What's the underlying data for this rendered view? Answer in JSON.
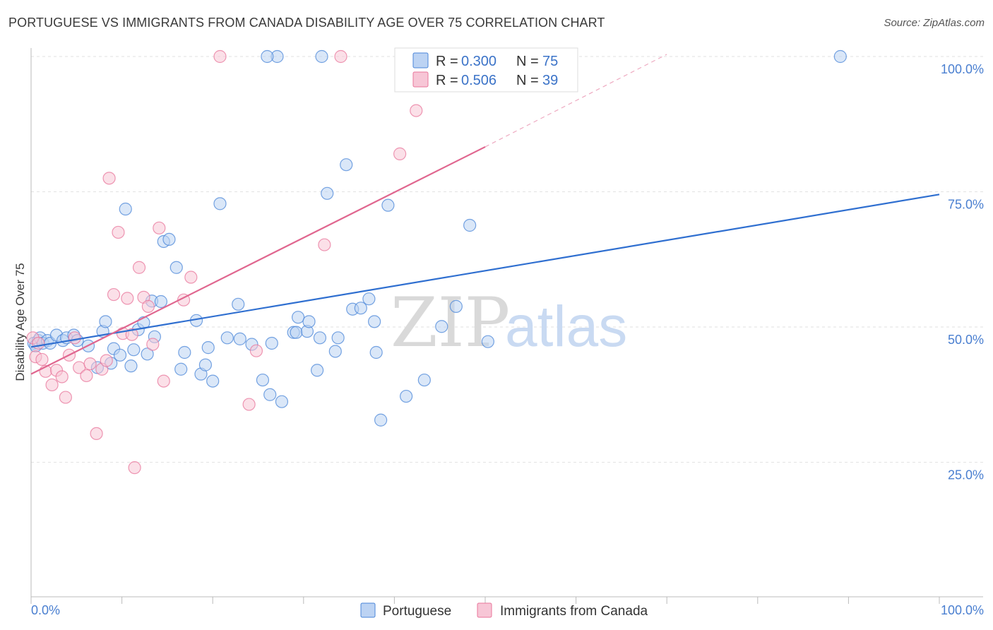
{
  "title": "PORTUGUESE VS IMMIGRANTS FROM CANADA DISABILITY AGE OVER 75 CORRELATION CHART",
  "source": "Source: ZipAtlas.com",
  "watermark": {
    "zip": "ZIP",
    "atlas": "atlas"
  },
  "colors": {
    "blue": "#4a86d8",
    "blue_fill": "#bcd3f3",
    "pink": "#e8759b",
    "pink_fill": "#f7c6d6",
    "axis_text": "#4a7fd0",
    "grid": "#e2e2e2"
  },
  "legend": {
    "r_label": "R =",
    "n_label": "N =",
    "series": [
      {
        "r": "0.300",
        "n": "75"
      },
      {
        "r": "0.506",
        "n": "39"
      }
    ]
  },
  "chart_data": {
    "type": "scatter",
    "title": "PORTUGUESE VS IMMIGRANTS FROM CANADA DISABILITY AGE OVER 75 CORRELATION CHART",
    "xlabel": "",
    "ylabel": "Disability Age Over 75",
    "xlim": [
      0,
      100
    ],
    "ylim": [
      0,
      105
    ],
    "x_tick_labels": [
      "0.0%",
      "100.0%"
    ],
    "y_ticks": [
      25,
      50,
      75,
      100
    ],
    "y_tick_labels": [
      "25.0%",
      "50.0%",
      "75.0%",
      "100.0%"
    ],
    "grid": true,
    "series": [
      {
        "name": "Portuguese",
        "r": 0.3,
        "n": 75,
        "trend": {
          "x0": 0,
          "y0": 46.3,
          "x1": 100,
          "y1": 74.5,
          "dashed_to": null
        },
        "points": [
          [
            0.3,
            47
          ],
          [
            0.5,
            46.5
          ],
          [
            0.8,
            47.5
          ],
          [
            1.0,
            48
          ],
          [
            1.3,
            47
          ],
          [
            1.8,
            47.5
          ],
          [
            2.1,
            47
          ],
          [
            2.8,
            48.5
          ],
          [
            3.5,
            47.5
          ],
          [
            3.9,
            48
          ],
          [
            4.7,
            48.5
          ],
          [
            5.1,
            47.5
          ],
          [
            6.3,
            46.5
          ],
          [
            7.3,
            42.5
          ],
          [
            7.9,
            49.2
          ],
          [
            8.2,
            51
          ],
          [
            8.8,
            43.3
          ],
          [
            9.1,
            46
          ],
          [
            9.8,
            44.8
          ],
          [
            10.4,
            71.8
          ],
          [
            11.0,
            42.8
          ],
          [
            11.3,
            45.8
          ],
          [
            11.8,
            49.5
          ],
          [
            12.4,
            50.8
          ],
          [
            12.8,
            45
          ],
          [
            13.3,
            54.8
          ],
          [
            13.6,
            48.2
          ],
          [
            14.3,
            54.7
          ],
          [
            14.6,
            65.8
          ],
          [
            15.2,
            66.2
          ],
          [
            16.0,
            61
          ],
          [
            16.5,
            42.2
          ],
          [
            16.9,
            45.3
          ],
          [
            18.2,
            51.2
          ],
          [
            18.7,
            41.3
          ],
          [
            19.2,
            43
          ],
          [
            19.5,
            46.2
          ],
          [
            20.0,
            40
          ],
          [
            20.8,
            72.8
          ],
          [
            21.6,
            48
          ],
          [
            22.8,
            54.2
          ],
          [
            23.0,
            47.8
          ],
          [
            24.3,
            46.8
          ],
          [
            25.5,
            40.2
          ],
          [
            26.3,
            37.5
          ],
          [
            26.5,
            47
          ],
          [
            27.1,
            100
          ],
          [
            27.6,
            36.2
          ],
          [
            28.9,
            49
          ],
          [
            29.2,
            49
          ],
          [
            29.4,
            51.8
          ],
          [
            30.4,
            49.2
          ],
          [
            30.6,
            51
          ],
          [
            31.5,
            42
          ],
          [
            31.8,
            48
          ],
          [
            32.6,
            74.7
          ],
          [
            33.5,
            45.5
          ],
          [
            33.8,
            48
          ],
          [
            34.7,
            80
          ],
          [
            35.4,
            53.3
          ],
          [
            36.3,
            53.5
          ],
          [
            37.2,
            55.2
          ],
          [
            37.8,
            51
          ],
          [
            38.0,
            45.3
          ],
          [
            38.5,
            32.8
          ],
          [
            39.3,
            72.5
          ],
          [
            41.3,
            37.2
          ],
          [
            43.3,
            40.2
          ],
          [
            45.2,
            50.1
          ],
          [
            46.8,
            53.8
          ],
          [
            48.3,
            68.8
          ],
          [
            50.3,
            47.3
          ],
          [
            32.0,
            100
          ],
          [
            26.0,
            100
          ],
          [
            89.1,
            100
          ]
        ]
      },
      {
        "name": "Immigrants from Canada",
        "r": 0.506,
        "n": 39,
        "trend": {
          "x0": 0,
          "y0": 41.3,
          "x1": 50,
          "y1": 83.3,
          "dashed_to": [
            70,
            100.4
          ]
        },
        "points": [
          [
            0.2,
            48
          ],
          [
            0.5,
            44.5
          ],
          [
            0.8,
            47
          ],
          [
            1.2,
            44
          ],
          [
            1.6,
            41.8
          ],
          [
            2.3,
            39.3
          ],
          [
            2.8,
            42
          ],
          [
            3.4,
            40.8
          ],
          [
            3.8,
            37
          ],
          [
            4.2,
            44.8
          ],
          [
            4.8,
            48
          ],
          [
            5.3,
            42.5
          ],
          [
            6.1,
            41
          ],
          [
            6.5,
            43.2
          ],
          [
            7.2,
            30.3
          ],
          [
            7.8,
            42.2
          ],
          [
            8.3,
            43.8
          ],
          [
            8.6,
            77.5
          ],
          [
            9.1,
            56
          ],
          [
            9.6,
            67.5
          ],
          [
            10.1,
            48.8
          ],
          [
            10.6,
            55.3
          ],
          [
            11.1,
            48.6
          ],
          [
            11.4,
            24
          ],
          [
            11.9,
            61
          ],
          [
            12.4,
            55.5
          ],
          [
            12.9,
            53.8
          ],
          [
            13.4,
            46.8
          ],
          [
            14.1,
            68.3
          ],
          [
            14.6,
            40
          ],
          [
            16.8,
            55
          ],
          [
            17.6,
            59.2
          ],
          [
            20.8,
            100
          ],
          [
            24.0,
            35.7
          ],
          [
            24.8,
            45.6
          ],
          [
            32.3,
            65.2
          ],
          [
            34.1,
            100
          ],
          [
            40.6,
            82
          ],
          [
            42.4,
            90
          ]
        ]
      }
    ]
  },
  "bottom_legend": [
    "Portuguese",
    "Immigrants from Canada"
  ]
}
